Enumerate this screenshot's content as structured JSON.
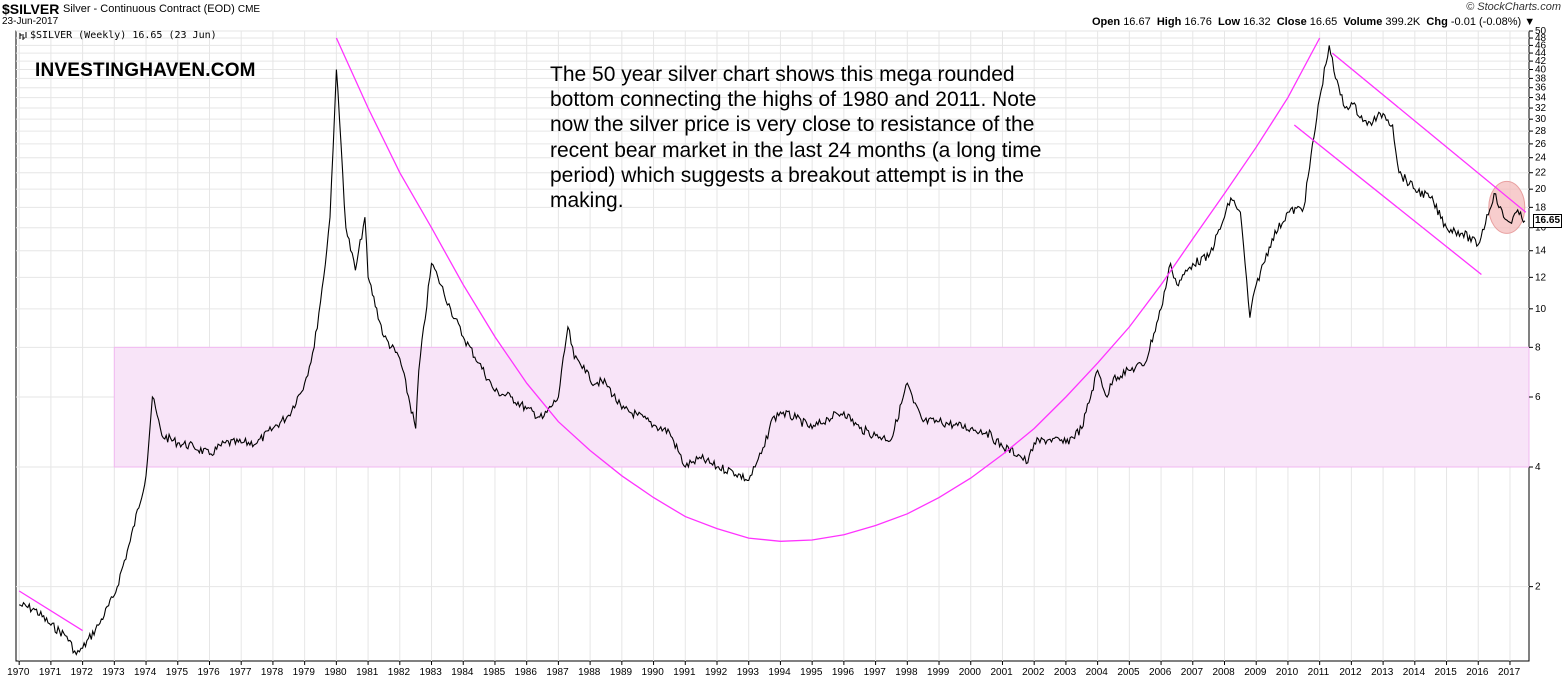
{
  "header": {
    "symbol": "$SILVER",
    "description": "Silver - Continuous Contract (EOD)",
    "exchange": "CME",
    "date": "23-Jun-2017",
    "brand": "© StockCharts.com"
  },
  "ohlc": {
    "open_label": "Open",
    "open": "16.67",
    "high_label": "High",
    "high": "16.76",
    "low_label": "Low",
    "low": "16.32",
    "close_label": "Close",
    "close": "16.65",
    "volume_label": "Volume",
    "volume": "399.2K",
    "chg_label": "Chg",
    "chg": "-0.01 (-0.08%)"
  },
  "legend": {
    "text": "$SILVER (Weekly) 16.65 (23 Jun)",
    "icon": "bar-chart-icon"
  },
  "watermark": "INVESTINGHAVEN.COM",
  "annotation": "The 50 year silver chart shows this mega rounded bottom connecting the highs of 1980 and 2011. Note now the silver price is very close to resistance of the recent bear market in the last 24 months (a long time period) which suggests a breakout attempt is in the making.",
  "colors": {
    "price": "#000000",
    "trendline": "#ff33ff",
    "zone_fill": "#f8e4f8",
    "zone_stroke": "#f0b8f0",
    "highlight": "#f4b8b8",
    "grid": "#e6e6e6"
  },
  "chart_data": {
    "type": "line",
    "series": [
      {
        "x": [
          1970.0,
          1970.5,
          1971.0,
          1971.5,
          1971.8,
          1972.0,
          1972.5,
          1973.0,
          1973.5,
          1974.0,
          1974.2,
          1974.5,
          1975.0,
          1975.5,
          1976.0,
          1976.5,
          1977.0,
          1977.5,
          1978.0,
          1978.5,
          1979.0,
          1979.3,
          1979.6,
          1979.8,
          1980.0,
          1980.1,
          1980.3,
          1980.6,
          1980.9,
          1981.0,
          1981.5,
          1982.0,
          1982.5,
          1982.6,
          1983.0,
          1983.2,
          1983.6,
          1984.0,
          1984.5,
          1985.0,
          1985.5,
          1986.0,
          1986.5,
          1987.0,
          1987.3,
          1987.5,
          1987.8,
          1988.0,
          1988.5,
          1989.0,
          1989.5,
          1990.0,
          1990.5,
          1991.0,
          1991.2,
          1991.5,
          1992.0,
          1992.5,
          1993.0,
          1993.2,
          1993.5,
          1993.7,
          1994.0,
          1994.5,
          1995.0,
          1995.5,
          1996.0,
          1996.5,
          1997.0,
          1997.5,
          1998.0,
          1998.2,
          1998.5,
          1999.0,
          1999.5,
          2000.0,
          2000.5,
          2001.0,
          2001.5,
          2001.8,
          2002.0,
          2002.5,
          2003.0,
          2003.5,
          2004.0,
          2004.3,
          2004.5,
          2005.0,
          2005.5,
          2006.0,
          2006.3,
          2006.5,
          2007.0,
          2007.5,
          2008.0,
          2008.2,
          2008.5,
          2008.8,
          2009.0,
          2009.5,
          2010.0,
          2010.5,
          2011.0,
          2011.3,
          2011.5,
          2011.8,
          2012.0,
          2012.5,
          2013.0,
          2013.3,
          2013.5,
          2014.0,
          2014.5,
          2015.0,
          2015.5,
          2016.0,
          2016.5,
          2016.8,
          2017.0,
          2017.2,
          2017.47
        ],
        "values": [
          1.8,
          1.75,
          1.6,
          1.5,
          1.35,
          1.4,
          1.6,
          1.9,
          2.6,
          3.8,
          6.0,
          4.8,
          4.6,
          4.5,
          4.3,
          4.6,
          4.6,
          4.6,
          5.0,
          5.4,
          6.5,
          8.0,
          12.0,
          17.0,
          40.0,
          30.0,
          16.0,
          12.5,
          17.0,
          12.0,
          8.5,
          7.5,
          5.0,
          7.0,
          13.0,
          12.0,
          10.0,
          8.5,
          7.3,
          6.2,
          6.0,
          5.6,
          5.3,
          6.0,
          9.0,
          7.5,
          7.2,
          6.6,
          6.5,
          5.6,
          5.4,
          5.1,
          4.9,
          4.0,
          4.1,
          4.2,
          4.0,
          3.9,
          3.7,
          4.0,
          4.5,
          5.2,
          5.5,
          5.3,
          5.0,
          5.3,
          5.5,
          5.0,
          4.8,
          4.7,
          6.5,
          5.8,
          5.2,
          5.2,
          5.1,
          5.0,
          4.9,
          4.5,
          4.3,
          4.1,
          4.6,
          4.7,
          4.6,
          5.0,
          7.0,
          6.0,
          6.7,
          7.0,
          7.3,
          10.0,
          13.0,
          11.5,
          13.0,
          13.5,
          17.0,
          19.0,
          17.5,
          9.5,
          11.5,
          15.0,
          17.5,
          18.0,
          34.0,
          46.0,
          38.0,
          32.0,
          33.0,
          29.0,
          31.0,
          29.0,
          22.0,
          20.0,
          19.0,
          16.0,
          15.5,
          14.5,
          19.5,
          17.0,
          16.5,
          17.5,
          16.65
        ]
      }
    ],
    "ylim": [
      1.3,
      50
    ],
    "y_scale": "log",
    "xlim": [
      1969.9,
      2017.6
    ],
    "y_ticks": [
      2,
      4,
      6,
      8,
      10,
      12,
      14,
      16,
      18,
      20,
      22,
      24,
      26,
      28,
      30,
      32,
      34,
      36,
      38,
      40,
      42,
      44,
      46,
      48,
      50
    ],
    "x_ticks": [
      1970,
      1971,
      1972,
      1973,
      1974,
      1975,
      1976,
      1977,
      1978,
      1979,
      1980,
      1981,
      1982,
      1983,
      1984,
      1985,
      1986,
      1987,
      1988,
      1989,
      1990,
      1991,
      1992,
      1993,
      1994,
      1995,
      1996,
      1997,
      1998,
      1999,
      2000,
      2001,
      2002,
      2003,
      2004,
      2005,
      2006,
      2007,
      2008,
      2009,
      2010,
      2011,
      2012,
      2013,
      2014,
      2015,
      2016,
      2017
    ],
    "last_price": "16.65",
    "annotations": {
      "zone": {
        "x_range": [
          1973.0,
          2017.6
        ],
        "y_range": [
          4.0,
          8.0
        ]
      },
      "rounded_bottom": {
        "x": [
          1980.0,
          1981.0,
          1982.0,
          1983.0,
          1984.0,
          1985.0,
          1986.0,
          1987.0,
          1988.0,
          1989.0,
          1990.0,
          1991.0,
          1992.0,
          1993.0,
          1994.0,
          1995.0,
          1996.0,
          1997.0,
          1998.0,
          1999.0,
          2000.0,
          2001.0,
          2002.0,
          2003.0,
          2004.0,
          2005.0,
          2006.0,
          2007.0,
          2008.0,
          2009.0,
          2010.0,
          2011.0
        ],
        "values": [
          48.0,
          32.0,
          22.0,
          16.0,
          11.5,
          8.5,
          6.5,
          5.2,
          4.4,
          3.8,
          3.35,
          3.0,
          2.8,
          2.65,
          2.6,
          2.62,
          2.7,
          2.85,
          3.05,
          3.35,
          3.75,
          4.3,
          5.0,
          6.0,
          7.3,
          9.0,
          11.5,
          15.0,
          19.5,
          25.5,
          34.0,
          48.0
        ]
      },
      "trend_1970": {
        "x": [
          1970.0,
          1972.0
        ],
        "values": [
          1.95,
          1.55
        ]
      },
      "channel_upper": {
        "x": [
          2011.4,
          2017.5
        ],
        "values": [
          44.0,
          17.5
        ]
      },
      "channel_lower": {
        "x": [
          2010.2,
          2016.1
        ],
        "values": [
          29.0,
          12.2
        ]
      },
      "highlight": {
        "x": 2016.9,
        "y": 18.0
      }
    }
  }
}
